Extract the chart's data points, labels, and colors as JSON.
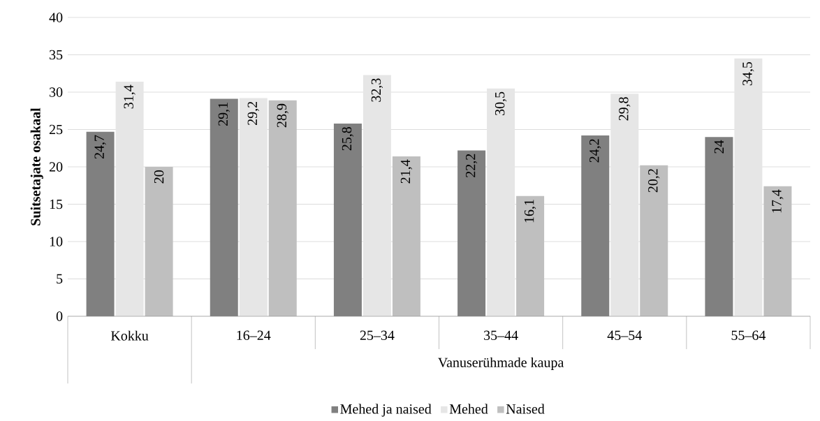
{
  "chart_data": {
    "type": "bar",
    "ylabel": "Suitsetajate osakaal",
    "categories": [
      "Kokku",
      "16–24",
      "25–34",
      "35–44",
      "45–54",
      "55–64"
    ],
    "series": [
      {
        "name": "Mehed ja naised",
        "color": "#808080",
        "values": [
          24.7,
          29.1,
          25.8,
          22.2,
          24.2,
          24
        ],
        "value_labels": [
          "24,7",
          "29,1",
          "25,8",
          "22,2",
          "24,2",
          "24"
        ]
      },
      {
        "name": "Mehed",
        "color": "#e6e6e6",
        "values": [
          31.4,
          29.2,
          32.3,
          30.5,
          29.8,
          34.5
        ],
        "value_labels": [
          "31,4",
          "29,2",
          "32,3",
          "30,5",
          "29,8",
          "34,5"
        ]
      },
      {
        "name": "Naised",
        "color": "#bfbfbf",
        "values": [
          20,
          28.9,
          21.4,
          16.1,
          20.2,
          17.4
        ],
        "value_labels": [
          "20",
          "28,9",
          "21,4",
          "16,1",
          "20,2",
          "17,4"
        ]
      }
    ],
    "annotations": [
      "Vanuserühmade kaupa"
    ],
    "ylim": [
      0,
      40
    ],
    "yticks": [
      0,
      5,
      10,
      15,
      20,
      25,
      30,
      35,
      40
    ],
    "grid": "y",
    "legend": "bottom"
  }
}
